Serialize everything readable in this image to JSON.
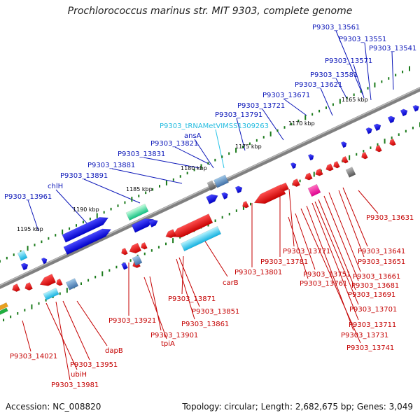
{
  "title": "Prochlorococcus marinus str. MIT 9303, complete genome",
  "footer": {
    "accession": "Accession: NC_008820",
    "summary": "Topology: circular; Length: 2,682,675 bp; Genes: 3,049"
  },
  "colors": {
    "backbone": "#808080",
    "tick": "#1a7a1a",
    "forward_gene": "#1a1ae8",
    "reverse_gene": "#e81010",
    "trna": "#28c4e8",
    "forward_label": "#0b16b8",
    "reverse_label": "#c40000"
  },
  "ruler_labels": [
    "1165 kbp",
    "1170 kbp",
    "1175 kbp",
    "1180 kbp",
    "1185 kbp",
    "1190 kbp",
    "1195 kbp"
  ],
  "top_labels": [
    {
      "text": "P9303_13561",
      "style": "blue"
    },
    {
      "text": "P9303_13551",
      "style": "blue"
    },
    {
      "text": "P9303_13541",
      "style": "blue"
    },
    {
      "text": "P9303_13571",
      "style": "blue"
    },
    {
      "text": "P9303_13581",
      "style": "blue"
    },
    {
      "text": "P9303_13621",
      "style": "blue"
    },
    {
      "text": "P9303_13671",
      "style": "blue"
    },
    {
      "text": "P9303_13721",
      "style": "blue"
    },
    {
      "text": "P9303_13791",
      "style": "blue"
    },
    {
      "text": "P9303_tRNAMetVIMSS1309263",
      "style": "cyan"
    },
    {
      "text": "ansA",
      "style": "blue"
    },
    {
      "text": "P9303_13821",
      "style": "blue"
    },
    {
      "text": "P9303_13831",
      "style": "blue"
    },
    {
      "text": "P9303_13881",
      "style": "blue"
    },
    {
      "text": "P9303_13891",
      "style": "blue"
    },
    {
      "text": "chlH",
      "style": "blue"
    },
    {
      "text": "P9303_13961",
      "style": "blue"
    }
  ],
  "bottom_labels": [
    {
      "text": "P9303_13631"
    },
    {
      "text": "P9303_13641"
    },
    {
      "text": "P9303_13651"
    },
    {
      "text": "P9303_13661"
    },
    {
      "text": "P9303_13681"
    },
    {
      "text": "P9303_13691"
    },
    {
      "text": "P9303_13701"
    },
    {
      "text": "P9303_13711"
    },
    {
      "text": "P9303_13731"
    },
    {
      "text": "P9303_13741"
    },
    {
      "text": "P9303_13771"
    },
    {
      "text": "P9303_13781"
    },
    {
      "text": "P9303_13751"
    },
    {
      "text": "P9303_13761"
    },
    {
      "text": "P9303_13801"
    },
    {
      "text": "carB"
    },
    {
      "text": "P9303_13871"
    },
    {
      "text": "P9303_13851"
    },
    {
      "text": "P9303_13861"
    },
    {
      "text": "P9303_13921"
    },
    {
      "text": "P9303_13901"
    },
    {
      "text": "tpiA"
    },
    {
      "text": "dapB"
    },
    {
      "text": "P9303_14021"
    },
    {
      "text": "P9303_13951"
    },
    {
      "text": "ubiH"
    },
    {
      "text": "P9303_13981"
    }
  ]
}
